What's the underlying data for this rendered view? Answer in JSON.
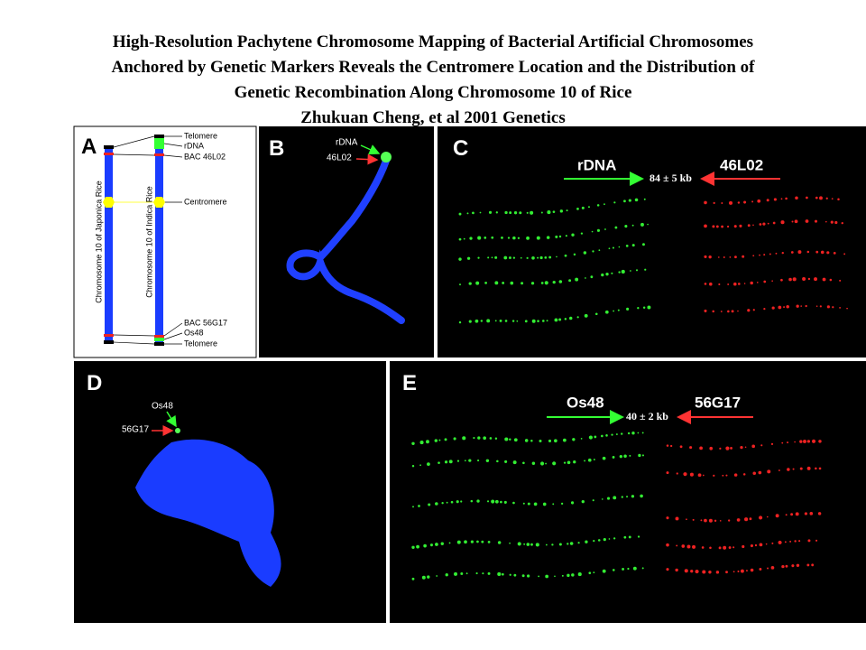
{
  "header": {
    "title_lines": [
      "High-Resolution Pachytene Chromosome Mapping of Bacterial Artificial Chromosomes",
      "Anchored by Genetic Markers Reveals the Centromere Location and the Distribution of",
      "Genetic Recombination Along Chromosome 10 of Rice"
    ],
    "author": "Zhukuan Cheng, et al 2001 Genetics"
  },
  "panels": {
    "A": {
      "letter": "A",
      "labels": [
        "Telomere",
        "rDNA",
        "BAC 46L02",
        "Centromere",
        "BAC 56G17",
        "Os48",
        "Telomere"
      ],
      "chromosomes": [
        "Chromosome 10 of Japonica Rice",
        "Chromosome 10 of Indica Rice"
      ]
    },
    "B": {
      "letter": "B",
      "labels": [
        "rDNA",
        "46L02"
      ]
    },
    "C": {
      "letter": "C",
      "left": "rDNA",
      "distance": "84 ± 5 kb",
      "right": "46L02"
    },
    "D": {
      "letter": "D",
      "labels": [
        "Os48",
        "56G17"
      ]
    },
    "E": {
      "letter": "E",
      "left": "Os48",
      "distance": "40 ± 2 kb",
      "right": "56G17"
    }
  }
}
